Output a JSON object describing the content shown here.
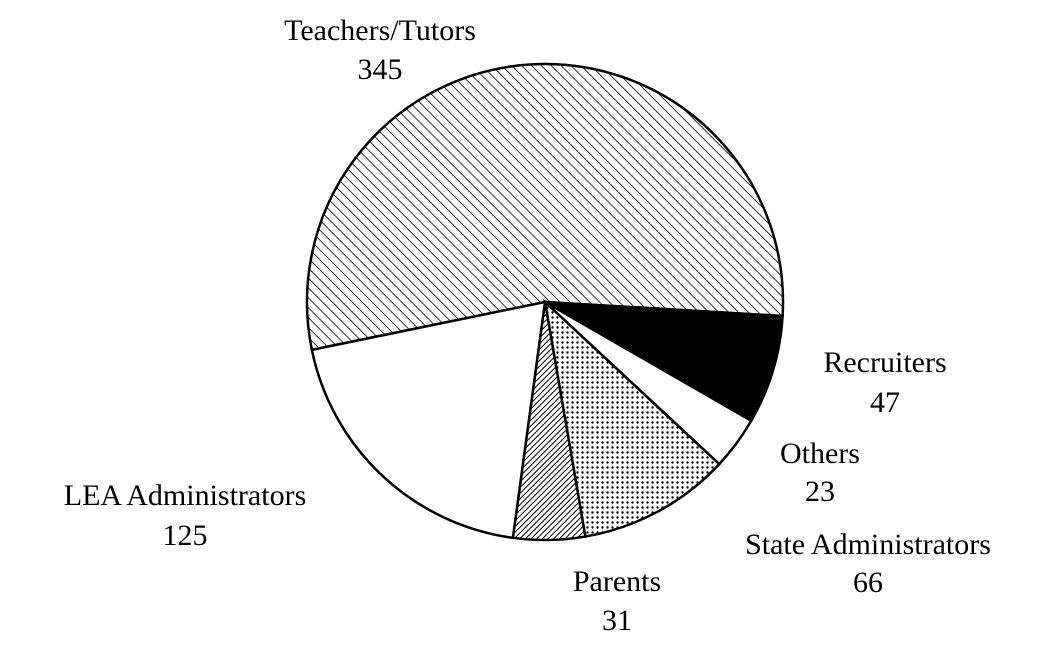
{
  "chart_data": {
    "type": "pie",
    "categories": [
      "Teachers/Tutors",
      "Recruiters",
      "Others",
      "State Administrators",
      "Parents",
      "LEA Administrators"
    ],
    "values": [
      345,
      47,
      23,
      66,
      31,
      125
    ],
    "fills": [
      "hatch",
      "black",
      "white",
      "dots",
      "dense-hatch",
      "white"
    ]
  }
}
